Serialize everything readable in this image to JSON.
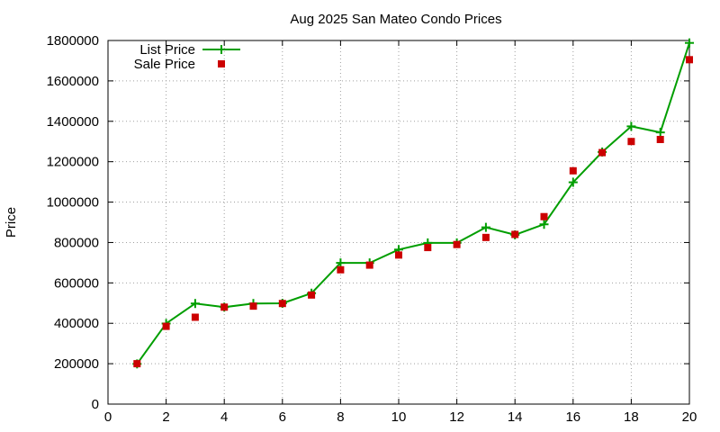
{
  "chart_data": {
    "type": "line",
    "title": "Aug 2025 San Mateo Condo Prices",
    "xlabel": "",
    "ylabel": "Price",
    "xlim": [
      0,
      20
    ],
    "ylim": [
      0,
      1800000
    ],
    "xticks": [
      "0",
      "2",
      "4",
      "6",
      "8",
      "10",
      "12",
      "14",
      "16",
      "18",
      "20"
    ],
    "yticks": [
      "0",
      "200000",
      "400000",
      "600000",
      "800000",
      "1000000",
      "1200000",
      "1400000",
      "1600000",
      "1800000"
    ],
    "grid": true,
    "legend_position": "top-left",
    "x": [
      1,
      2,
      3,
      4,
      5,
      6,
      7,
      8,
      9,
      10,
      11,
      12,
      13,
      14,
      15,
      16,
      17,
      18,
      19,
      20
    ],
    "series": [
      {
        "name": "List Price",
        "style": "line-points",
        "color": "#009e00",
        "values": [
          199000,
          399000,
          498000,
          480000,
          498000,
          499000,
          549000,
          699000,
          699000,
          765000,
          798000,
          798000,
          875000,
          838000,
          890000,
          1098000,
          1248000,
          1375000,
          1345000,
          1788000
        ]
      },
      {
        "name": "Sale Price",
        "style": "points",
        "color": "#cc0000",
        "values": [
          200000,
          385000,
          430000,
          480000,
          485000,
          498000,
          540000,
          665000,
          688000,
          738000,
          775000,
          790000,
          825000,
          840000,
          928000,
          1155000,
          1245000,
          1300000,
          1310000,
          1705000
        ]
      }
    ]
  }
}
